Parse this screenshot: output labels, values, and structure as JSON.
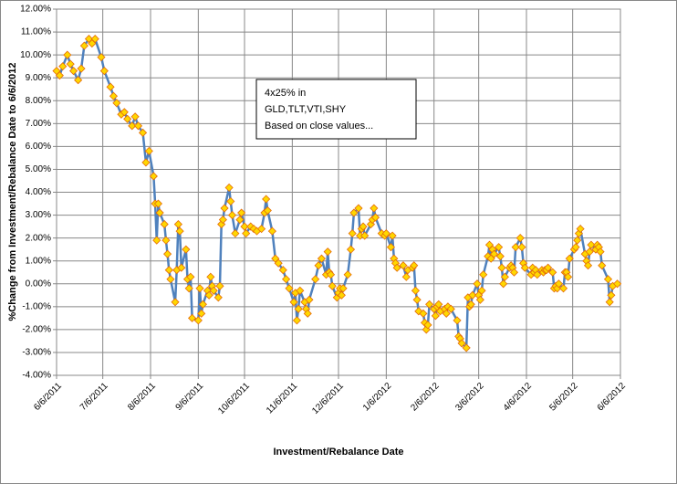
{
  "chart_data": {
    "type": "line",
    "y_label": "%Change from Investment/Rebalance Date to 6/6/2012",
    "x_label": "Investment/Rebalance Date",
    "annotation": [
      "4x25% in",
      "GLD,TLT,VTI,SHY",
      "Based on close values..."
    ],
    "grid": true,
    "xlim": [
      "6/6/2011",
      "6/6/2012"
    ],
    "xticks": [
      "6/6/2011",
      "7/6/2011",
      "8/6/2011",
      "9/6/2011",
      "10/6/2011",
      "11/6/2011",
      "12/6/2011",
      "1/6/2012",
      "2/6/2012",
      "3/6/2012",
      "4/6/2012",
      "5/6/2012",
      "6/6/2012"
    ],
    "ylim": [
      -4,
      12
    ],
    "yticks": [
      {
        "value": -4,
        "label": "-4.00%"
      },
      {
        "value": -3,
        "label": "-3.00%"
      },
      {
        "value": -2,
        "label": "-2.00%"
      },
      {
        "value": -1,
        "label": "-1.00%"
      },
      {
        "value": 0,
        "label": "0.00%"
      },
      {
        "value": 1,
        "label": "1.00%"
      },
      {
        "value": 2,
        "label": "2.00%"
      },
      {
        "value": 3,
        "label": "3.00%"
      },
      {
        "value": 4,
        "label": "4.00%"
      },
      {
        "value": 5,
        "label": "5.00%"
      },
      {
        "value": 6,
        "label": "6.00%"
      },
      {
        "value": 7,
        "label": "7.00%"
      },
      {
        "value": 8,
        "label": "8.00%"
      },
      {
        "value": 9,
        "label": "9.00%"
      },
      {
        "value": 10,
        "label": "10.00%"
      },
      {
        "value": 11,
        "label": "11.00%"
      },
      {
        "value": 12,
        "label": "12.00%"
      }
    ],
    "x": [
      "6/6/2011",
      "6/8/2011",
      "6/10/2011",
      "6/13/2011",
      "6/15/2011",
      "6/17/2011",
      "6/20/2011",
      "6/22/2011",
      "6/24/2011",
      "6/27/2011",
      "6/29/2011",
      "7/1/2011",
      "7/5/2011",
      "7/7/2011",
      "7/11/2011",
      "7/13/2011",
      "7/15/2011",
      "7/18/2011",
      "7/20/2011",
      "7/22/2011",
      "7/25/2011",
      "7/27/2011",
      "7/29/2011",
      "8/1/2011",
      "8/3/2011",
      "8/5/2011",
      "8/8/2011",
      "8/9/2011",
      "8/10/2011",
      "8/11/2011",
      "8/12/2011",
      "8/15/2011",
      "8/16/2011",
      "8/17/2011",
      "8/18/2011",
      "8/19/2011",
      "8/22/2011",
      "8/23/2011",
      "8/24/2011",
      "8/25/2011",
      "8/26/2011",
      "8/29/2011",
      "8/30/2011",
      "8/31/2011",
      "9/1/2011",
      "9/2/2011",
      "9/6/2011",
      "9/7/2011",
      "9/8/2011",
      "9/9/2011",
      "9/12/2011",
      "9/13/2011",
      "9/14/2011",
      "9/15/2011",
      "9/16/2011",
      "9/19/2011",
      "9/20/2011",
      "9/21/2011",
      "9/22/2011",
      "9/23/2011",
      "9/26/2011",
      "9/27/2011",
      "9/28/2011",
      "9/30/2011",
      "10/3/2011",
      "10/4/2011",
      "10/6/2011",
      "10/7/2011",
      "10/10/2011",
      "10/12/2011",
      "10/14/2011",
      "10/17/2011",
      "10/19/2011",
      "10/20/2011",
      "10/21/2011",
      "10/24/2011",
      "10/26/2011",
      "10/28/2011",
      "10/31/2011",
      "11/2/2011",
      "11/4/2011",
      "11/7/2011",
      "11/8/2011",
      "11/9/2011",
      "11/10/2011",
      "11/11/2011",
      "11/14/2011",
      "11/15/2011",
      "11/16/2011",
      "11/17/2011",
      "11/21/2011",
      "11/23/2011",
      "11/25/2011",
      "11/28/2011",
      "11/29/2011",
      "11/30/2011",
      "12/1/2011",
      "12/2/2011",
      "12/5/2011",
      "12/6/2011",
      "12/7/2011",
      "12/8/2011",
      "12/9/2011",
      "12/12/2011",
      "12/14/2011",
      "12/15/2011",
      "12/16/2011",
      "12/19/2011",
      "12/20/2011",
      "12/21/2011",
      "12/22/2011",
      "12/23/2011",
      "12/27/2011",
      "12/28/2011",
      "12/29/2011",
      "12/30/2011",
      "1/3/2012",
      "1/5/2012",
      "1/6/2012",
      "1/9/2012",
      "1/10/2012",
      "1/11/2012",
      "1/12/2012",
      "1/13/2012",
      "1/17/2012",
      "1/19/2012",
      "1/20/2012",
      "1/23/2012",
      "1/24/2012",
      "1/25/2012",
      "1/26/2012",
      "1/27/2012",
      "1/30/2012",
      "1/31/2012",
      "2/1/2012",
      "2/2/2012",
      "2/3/2012",
      "2/6/2012",
      "2/7/2012",
      "2/8/2012",
      "2/9/2012",
      "2/10/2012",
      "2/13/2012",
      "2/14/2012",
      "2/15/2012",
      "2/17/2012",
      "2/21/2012",
      "2/22/2012",
      "2/23/2012",
      "2/24/2012",
      "2/27/2012",
      "2/28/2012",
      "2/29/2012",
      "3/1/2012",
      "3/2/2012",
      "3/5/2012",
      "3/6/2012",
      "3/7/2012",
      "3/8/2012",
      "3/9/2012",
      "3/12/2012",
      "3/13/2012",
      "3/14/2012",
      "3/15/2012",
      "3/16/2012",
      "3/19/2012",
      "3/20/2012",
      "3/21/2012",
      "3/22/2012",
      "3/23/2012",
      "3/26/2012",
      "3/27/2012",
      "3/28/2012",
      "3/29/2012",
      "3/30/2012",
      "4/2/2012",
      "4/3/2012",
      "4/4/2012",
      "4/5/2012",
      "4/9/2012",
      "4/10/2012",
      "4/11/2012",
      "4/12/2012",
      "4/13/2012",
      "4/16/2012",
      "4/17/2012",
      "4/18/2012",
      "4/19/2012",
      "4/20/2012",
      "4/23/2012",
      "4/24/2012",
      "4/25/2012",
      "4/26/2012",
      "4/27/2012",
      "4/30/2012",
      "5/1/2012",
      "5/2/2012",
      "5/3/2012",
      "5/4/2012",
      "5/7/2012",
      "5/8/2012",
      "5/9/2012",
      "5/10/2012",
      "5/11/2012",
      "5/14/2012",
      "5/15/2012",
      "5/16/2012",
      "5/17/2012",
      "5/18/2012",
      "5/21/2012",
      "5/22/2012",
      "5/23/2012",
      "5/24/2012",
      "5/25/2012",
      "5/29/2012",
      "5/30/2012",
      "5/31/2012",
      "6/1/2012",
      "6/4/2012"
    ],
    "series": [
      {
        "color": "#4f81bd",
        "marker_fill": "#ffd700",
        "marker_stroke": "#e46c0a",
        "values": [
          9.3,
          9.1,
          9.5,
          10.0,
          9.6,
          9.3,
          8.9,
          9.4,
          10.4,
          10.7,
          10.5,
          10.7,
          9.9,
          9.3,
          8.6,
          8.2,
          7.9,
          7.4,
          7.5,
          7.2,
          6.9,
          7.3,
          6.9,
          6.6,
          5.3,
          5.8,
          4.7,
          3.5,
          1.9,
          3.5,
          3.1,
          2.6,
          1.9,
          1.3,
          0.6,
          0.2,
          -0.8,
          0.6,
          2.6,
          2.3,
          0.7,
          1.5,
          0.2,
          -0.2,
          0.3,
          -1.5,
          -1.6,
          -0.2,
          -1.3,
          -0.9,
          -0.3,
          -0.5,
          0.3,
          -0.1,
          -0.3,
          -0.6,
          -0.1,
          2.6,
          2.8,
          3.3,
          4.2,
          3.6,
          3.0,
          2.2,
          2.8,
          3.1,
          2.5,
          2.2,
          2.5,
          2.4,
          2.3,
          2.4,
          3.1,
          3.7,
          3.2,
          2.3,
          1.1,
          0.9,
          0.6,
          0.2,
          -0.2,
          -0.8,
          -0.4,
          -1.6,
          -1.1,
          -0.3,
          -0.8,
          -1.1,
          -1.3,
          -0.7,
          0.2,
          0.8,
          1.1,
          0.4,
          1.4,
          0.5,
          0.4,
          -0.1,
          -0.6,
          -0.4,
          -0.2,
          -0.5,
          -0.2,
          0.4,
          1.5,
          2.2,
          3.1,
          3.3,
          2.1,
          2.4,
          2.5,
          2.1,
          2.6,
          2.8,
          3.3,
          2.9,
          2.2,
          2.1,
          2.2,
          1.6,
          2.1,
          1.1,
          0.9,
          0.7,
          0.8,
          0.3,
          0.6,
          0.7,
          0.8,
          -0.3,
          -0.7,
          -1.2,
          -1.3,
          -1.7,
          -2.0,
          -1.8,
          -0.9,
          -1.1,
          -1.4,
          -1.0,
          -0.9,
          -1.2,
          -1.1,
          -1.3,
          -1.0,
          -1.1,
          -1.6,
          -2.3,
          -2.4,
          -2.6,
          -2.8,
          -0.6,
          -1.0,
          -0.9,
          -0.5,
          0.0,
          -0.5,
          -0.7,
          -0.3,
          0.4,
          1.2,
          1.7,
          1.1,
          1.5,
          1.3,
          1.6,
          1.2,
          0.7,
          0.0,
          0.3,
          0.7,
          0.8,
          0.7,
          0.5,
          1.6,
          2.0,
          1.6,
          0.9,
          0.7,
          0.4,
          0.7,
          0.5,
          0.6,
          0.4,
          0.6,
          0.5,
          0.6,
          0.6,
          0.7,
          0.5,
          -0.2,
          -0.1,
          -0.2,
          0.0,
          -0.2,
          0.5,
          0.5,
          0.3,
          1.1,
          1.5,
          1.6,
          1.9,
          2.2,
          2.4,
          1.3,
          1.0,
          0.8,
          1.4,
          1.7,
          1.5,
          1.7,
          1.6,
          1.4,
          0.8,
          0.2,
          -0.8,
          -0.5,
          -0.1,
          0.0
        ]
      }
    ]
  }
}
